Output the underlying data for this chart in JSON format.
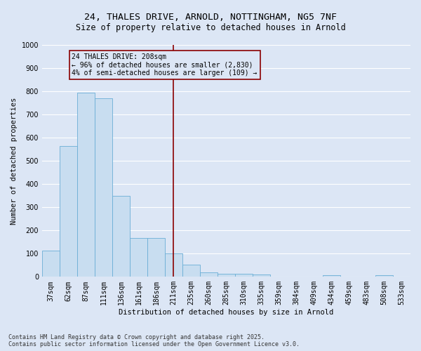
{
  "title_line1": "24, THALES DRIVE, ARNOLD, NOTTINGHAM, NG5 7NF",
  "title_line2": "Size of property relative to detached houses in Arnold",
  "xlabel": "Distribution of detached houses by size in Arnold",
  "ylabel": "Number of detached properties",
  "categories": [
    "37sqm",
    "62sqm",
    "87sqm",
    "111sqm",
    "136sqm",
    "161sqm",
    "186sqm",
    "211sqm",
    "235sqm",
    "260sqm",
    "285sqm",
    "310sqm",
    "335sqm",
    "359sqm",
    "384sqm",
    "409sqm",
    "434sqm",
    "459sqm",
    "483sqm",
    "508sqm",
    "533sqm"
  ],
  "values": [
    113,
    563,
    793,
    770,
    350,
    168,
    168,
    100,
    52,
    18,
    13,
    13,
    10,
    0,
    0,
    0,
    7,
    0,
    0,
    7,
    0
  ],
  "bar_color": "#c8ddf0",
  "bar_edge_color": "#6baed6",
  "vline_x_index": 7,
  "vline_color": "#8b0000",
  "annotation_line1": "24 THALES DRIVE: 208sqm",
  "annotation_line2": "← 96% of detached houses are smaller (2,830)",
  "annotation_line3": "4% of semi-detached houses are larger (109) →",
  "annotation_box_color": "#8b0000",
  "ylim": [
    0,
    1000
  ],
  "yticks": [
    0,
    100,
    200,
    300,
    400,
    500,
    600,
    700,
    800,
    900,
    1000
  ],
  "bg_color": "#dce6f5",
  "grid_color": "#ffffff",
  "footer_line1": "Contains HM Land Registry data © Crown copyright and database right 2025.",
  "footer_line2": "Contains public sector information licensed under the Open Government Licence v3.0.",
  "title_fontsize": 9.5,
  "subtitle_fontsize": 8.5,
  "axis_label_fontsize": 7.5,
  "tick_fontsize": 7,
  "annotation_fontsize": 7,
  "footer_fontsize": 6
}
